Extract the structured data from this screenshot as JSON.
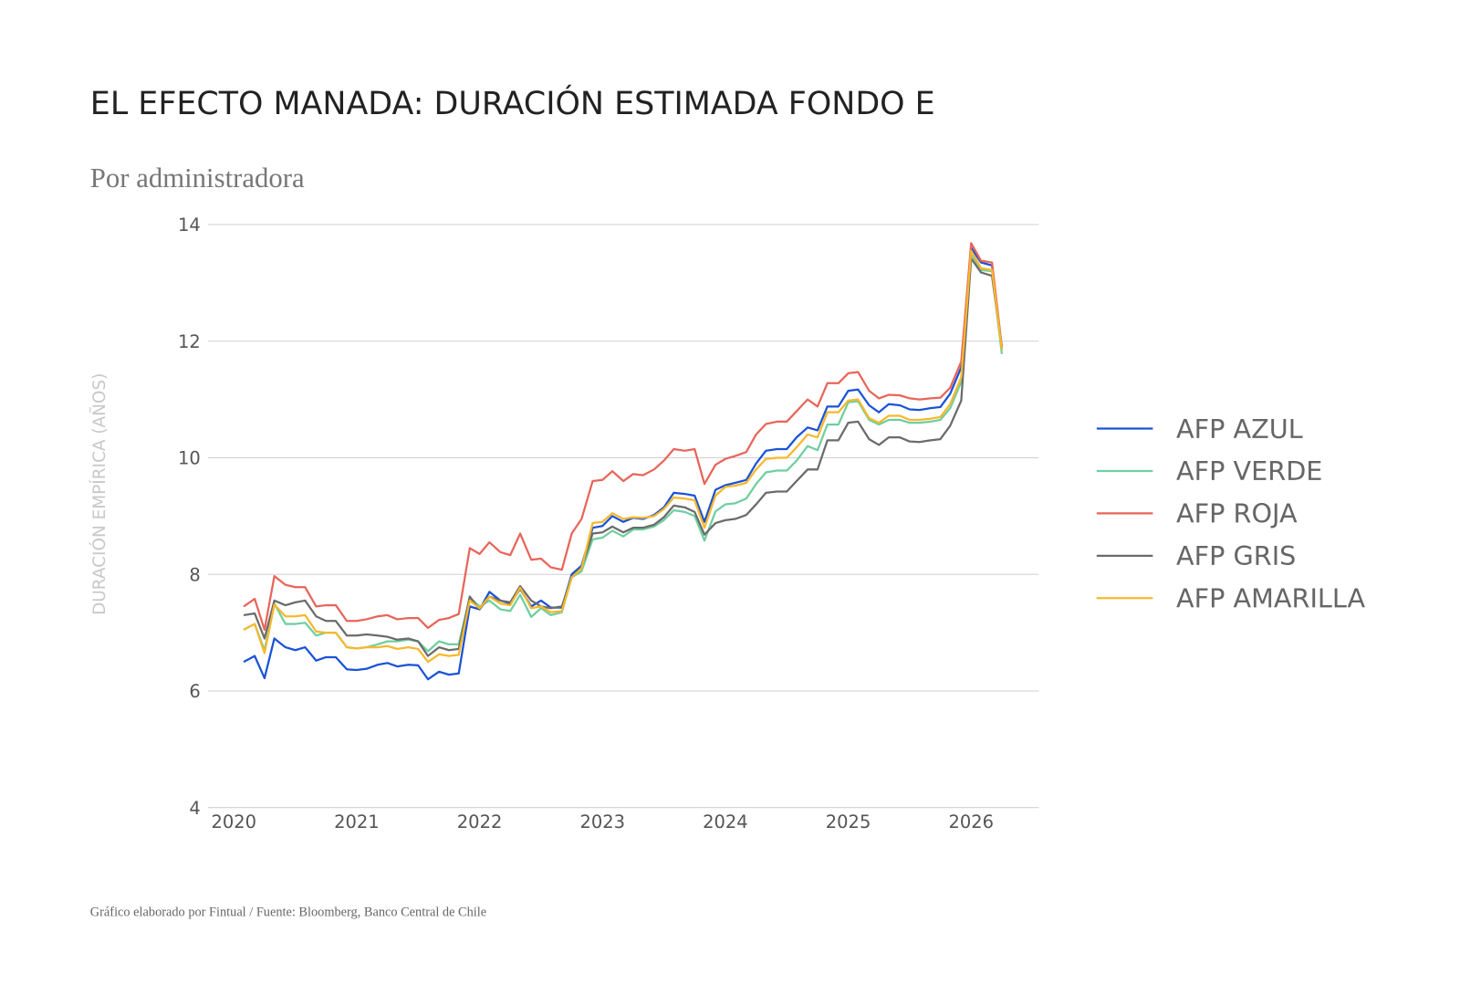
{
  "chart_data": {
    "type": "line",
    "title": "EL EFECTO MANADA: DURACIÓN ESTIMADA FONDO E",
    "subtitle": "Por administradora",
    "y_label": "DURACIÓN EMPÍRICA (AÑOS)",
    "source": "Gráfico elaborado por Fintual / Fuente: Bloomberg, Banco Central de Chile",
    "legend": "right",
    "grid": true,
    "xlim": [
      2019.79,
      2026.55
    ],
    "xticks": [
      2020,
      2021,
      2022,
      2023,
      2024,
      2025,
      2026
    ],
    "ylim": [
      4,
      14
    ],
    "yticks": [
      4,
      6,
      8,
      10,
      12,
      14
    ],
    "x": [
      2020.08,
      2020.17,
      2020.25,
      2020.33,
      2020.42,
      2020.5,
      2020.58,
      2020.67,
      2020.75,
      2020.83,
      2020.92,
      2021,
      2021.08,
      2021.17,
      2021.25,
      2021.33,
      2021.42,
      2021.5,
      2021.58,
      2021.67,
      2021.75,
      2021.83,
      2021.92,
      2022,
      2022.08,
      2022.17,
      2022.25,
      2022.33,
      2022.42,
      2022.5,
      2022.58,
      2022.67,
      2022.75,
      2022.83,
      2022.92,
      2023,
      2023.08,
      2023.17,
      2023.25,
      2023.33,
      2023.42,
      2023.5,
      2023.58,
      2023.67,
      2023.75,
      2023.83,
      2023.92,
      2024,
      2024.08,
      2024.17,
      2024.25,
      2024.33,
      2024.42,
      2024.5,
      2024.58,
      2024.67,
      2024.75,
      2024.83,
      2024.92,
      2025,
      2025.08,
      2025.17,
      2025.25,
      2025.33,
      2025.42,
      2025.5,
      2025.58,
      2025.67,
      2025.75,
      2025.83,
      2025.92,
      2026,
      2026.08,
      2026.17,
      2026.25
    ],
    "series": [
      {
        "name": "AFP AZUL",
        "color": "#1a53d6",
        "values": [
          6.5,
          6.6,
          6.22,
          6.9,
          6.75,
          6.7,
          6.75,
          6.52,
          6.58,
          6.58,
          6.37,
          6.36,
          6.38,
          6.45,
          6.48,
          6.42,
          6.45,
          6.44,
          6.2,
          6.33,
          6.28,
          6.3,
          7.45,
          7.4,
          7.7,
          7.55,
          7.5,
          7.75,
          7.45,
          7.55,
          7.43,
          7.43,
          8.0,
          8.15,
          8.8,
          8.83,
          9.0,
          8.9,
          8.97,
          8.95,
          9.02,
          9.15,
          9.4,
          9.38,
          9.35,
          8.9,
          9.45,
          9.53,
          9.57,
          9.62,
          9.9,
          10.12,
          10.15,
          10.15,
          10.35,
          10.52,
          10.47,
          10.88,
          10.88,
          11.15,
          11.17,
          10.9,
          10.78,
          10.92,
          10.9,
          10.83,
          10.82,
          10.85,
          10.87,
          11.1,
          11.55,
          13.6,
          13.35,
          13.3,
          11.85
        ]
      },
      {
        "name": "AFP VERDE",
        "color": "#6fcf9f",
        "values": [
          7.05,
          7.15,
          6.7,
          7.5,
          7.15,
          7.15,
          7.17,
          6.95,
          7.0,
          7.0,
          6.75,
          6.73,
          6.75,
          6.8,
          6.85,
          6.85,
          6.88,
          6.85,
          6.68,
          6.85,
          6.8,
          6.8,
          7.6,
          7.45,
          7.55,
          7.4,
          7.37,
          7.65,
          7.27,
          7.42,
          7.3,
          7.35,
          7.95,
          8.05,
          8.6,
          8.63,
          8.75,
          8.65,
          8.77,
          8.77,
          8.82,
          8.93,
          9.1,
          9.07,
          9.0,
          8.58,
          9.08,
          9.2,
          9.22,
          9.3,
          9.55,
          9.75,
          9.78,
          9.78,
          9.95,
          10.2,
          10.13,
          10.57,
          10.57,
          10.95,
          10.97,
          10.65,
          10.57,
          10.65,
          10.65,
          10.6,
          10.6,
          10.62,
          10.65,
          10.85,
          11.3,
          13.5,
          13.22,
          13.2,
          11.78
        ]
      },
      {
        "name": "AFP ROJA",
        "color": "#e8655a",
        "values": [
          7.45,
          7.58,
          7.05,
          7.97,
          7.82,
          7.78,
          7.78,
          7.45,
          7.47,
          7.47,
          7.2,
          7.2,
          7.23,
          7.28,
          7.3,
          7.23,
          7.25,
          7.25,
          7.08,
          7.22,
          7.25,
          7.32,
          8.45,
          8.35,
          8.55,
          8.38,
          8.33,
          8.7,
          8.25,
          8.27,
          8.12,
          8.08,
          8.7,
          8.95,
          9.6,
          9.62,
          9.77,
          9.6,
          9.72,
          9.7,
          9.8,
          9.95,
          10.15,
          10.12,
          10.15,
          9.55,
          9.88,
          9.98,
          10.03,
          10.1,
          10.4,
          10.58,
          10.62,
          10.62,
          10.8,
          11.0,
          10.88,
          11.28,
          11.28,
          11.45,
          11.47,
          11.15,
          11.02,
          11.08,
          11.07,
          11.02,
          11.0,
          11.02,
          11.03,
          11.2,
          11.65,
          13.68,
          13.38,
          13.35,
          11.9
        ]
      },
      {
        "name": "AFP GRIS",
        "color": "#6b6b6b",
        "values": [
          7.3,
          7.33,
          6.9,
          7.55,
          7.47,
          7.52,
          7.55,
          7.28,
          7.2,
          7.2,
          6.95,
          6.95,
          6.97,
          6.95,
          6.93,
          6.88,
          6.9,
          6.85,
          6.6,
          6.75,
          6.7,
          6.72,
          7.62,
          7.4,
          7.62,
          7.55,
          7.52,
          7.8,
          7.55,
          7.45,
          7.42,
          7.45,
          7.95,
          8.12,
          8.7,
          8.72,
          8.82,
          8.72,
          8.8,
          8.8,
          8.85,
          8.98,
          9.18,
          9.15,
          9.07,
          8.68,
          8.88,
          8.93,
          8.95,
          9.02,
          9.2,
          9.4,
          9.42,
          9.42,
          9.6,
          9.8,
          9.8,
          10.3,
          10.3,
          10.6,
          10.62,
          10.32,
          10.22,
          10.35,
          10.35,
          10.28,
          10.27,
          10.3,
          10.32,
          10.55,
          10.98,
          13.42,
          13.18,
          13.12,
          11.9
        ]
      },
      {
        "name": "AFP AMARILLA",
        "color": "#f7b82c",
        "values": [
          7.05,
          7.15,
          6.65,
          7.48,
          7.28,
          7.28,
          7.3,
          7.02,
          7.0,
          7.0,
          6.75,
          6.73,
          6.75,
          6.75,
          6.77,
          6.72,
          6.75,
          6.72,
          6.5,
          6.63,
          6.6,
          6.62,
          7.55,
          7.42,
          7.62,
          7.5,
          7.47,
          7.77,
          7.42,
          7.45,
          7.35,
          7.37,
          7.95,
          8.1,
          8.88,
          8.9,
          9.05,
          8.95,
          8.98,
          8.97,
          9.0,
          9.12,
          9.32,
          9.3,
          9.27,
          8.8,
          9.35,
          9.5,
          9.52,
          9.57,
          9.8,
          9.98,
          10.0,
          10.0,
          10.18,
          10.4,
          10.35,
          10.78,
          10.78,
          10.98,
          11.0,
          10.68,
          10.6,
          10.72,
          10.72,
          10.65,
          10.65,
          10.67,
          10.7,
          10.92,
          11.38,
          13.55,
          13.25,
          13.22,
          11.85
        ]
      }
    ]
  }
}
